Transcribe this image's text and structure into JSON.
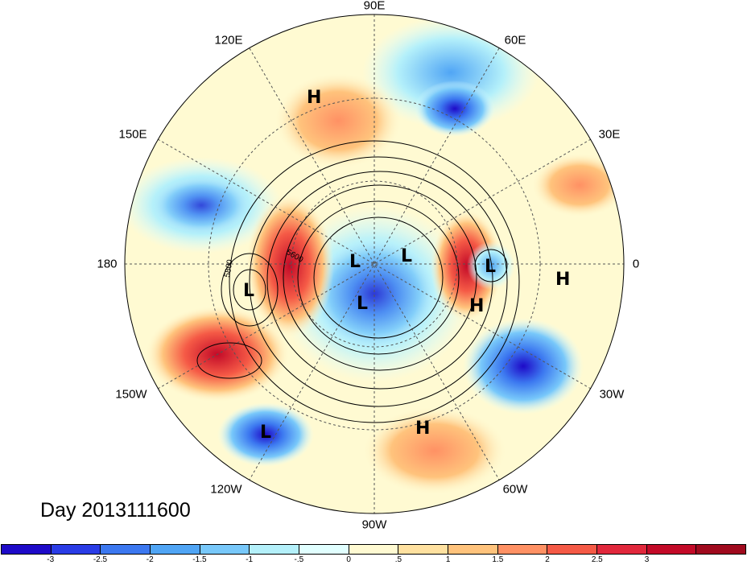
{
  "title": "Day 2013111600",
  "longitude_labels": {
    "top": "90E",
    "upper_left_1": "120E",
    "upper_left_2": "150E",
    "left": "180",
    "lower_left_1": "150W",
    "lower_left_2": "120W",
    "bottom": "90W",
    "lower_right_1": "60W",
    "lower_right_2": "30W",
    "right": "0",
    "upper_right_2": "30E",
    "upper_right_1": "60E"
  },
  "contour_labels": [
    "5800",
    "5600"
  ],
  "pressure_centers": [
    {
      "type": "H",
      "name": "high-east-asia"
    },
    {
      "type": "L",
      "name": "low-north-pacific"
    },
    {
      "type": "L",
      "name": "low-arctic-1"
    },
    {
      "type": "L",
      "name": "low-arctic-2"
    },
    {
      "type": "L",
      "name": "low-hudson"
    },
    {
      "type": "L",
      "name": "low-europe"
    },
    {
      "type": "H",
      "name": "high-africa"
    },
    {
      "type": "H",
      "name": "high-atlantic"
    },
    {
      "type": "L",
      "name": "low-east-pacific"
    },
    {
      "type": "H",
      "name": "high-caribbean"
    }
  ],
  "colorbar": {
    "colors": [
      "#1e0ac8",
      "#2a3ce6",
      "#3c78f0",
      "#50a5f5",
      "#78c8fa",
      "#b4f0fa",
      "#e1ffff",
      "#fffad2",
      "#ffe1a0",
      "#ffc37c",
      "#ff9164",
      "#f55a46",
      "#e1283c",
      "#c30a28",
      "#a00a1e"
    ],
    "ticks": [
      "-3",
      "-2.5",
      "-2",
      "-1.5",
      "-1",
      "-.5",
      "0",
      ".5",
      "1",
      "1.5",
      "2",
      "2.5",
      "3"
    ]
  }
}
